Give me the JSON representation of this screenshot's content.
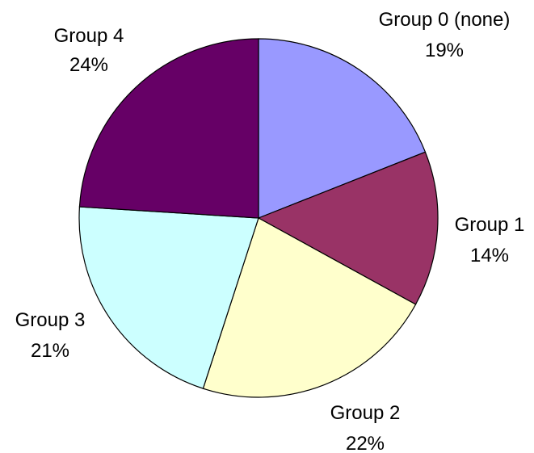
{
  "chart_data": {
    "type": "pie",
    "title": "",
    "slices": [
      {
        "name": "Group 0 (none)",
        "value": 19,
        "value_label": "19%",
        "color": "#9999ff"
      },
      {
        "name": "Group 1",
        "value": 14,
        "value_label": "14%",
        "color": "#993366"
      },
      {
        "name": "Group 2",
        "value": 22,
        "value_label": "22%",
        "color": "#ffffcc"
      },
      {
        "name": "Group 3",
        "value": 21,
        "value_label": "21%",
        "color": "#ccffff"
      },
      {
        "name": "Group 4",
        "value": 24,
        "value_label": "24%",
        "color": "#660066"
      }
    ],
    "start_angle_deg": 0,
    "direction": "clockwise",
    "legend": "none"
  }
}
